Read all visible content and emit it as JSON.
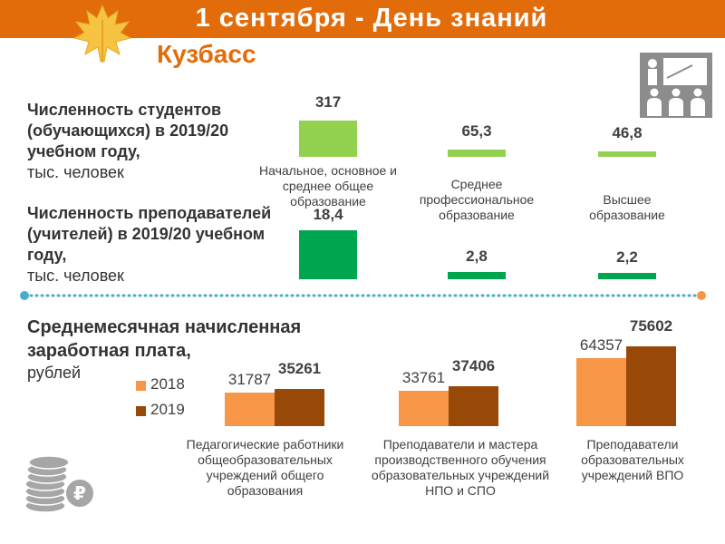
{
  "header": {
    "title": "1 сентября - День знаний",
    "bg_color": "#E36C0A"
  },
  "region": {
    "name": "Кузбасс",
    "color": "#E36C0A"
  },
  "students_block": {
    "title": "Численность студентов (обучающихся) в 2019/20 учебном году,",
    "unit": "тыс. человек"
  },
  "teachers_block": {
    "title": "Численность преподавателей (учителей) в 2019/20 учебном году,",
    "unit": "тыс. человек"
  },
  "salary_block": {
    "title": "Среднемесячная начисленная заработная плата,",
    "unit": "рублей"
  },
  "icons": {
    "teacher": "teacher-presentation-icon",
    "coins": "coins-ruble-icon",
    "leaf": "maple-leaf-icon"
  },
  "chart_data": [
    {
      "type": "bar",
      "categories": [
        "Начальное, основное и среднее общее образование",
        "Среднее профессиональное образование",
        "Высшее образование"
      ],
      "series": [
        {
          "values": [
            317,
            65.3,
            46.8
          ]
        }
      ],
      "value_labels": [
        "317",
        "65,3",
        "46,8"
      ],
      "color": "#92D050",
      "ylabel": "тыс. человек"
    },
    {
      "type": "bar",
      "categories": [
        "Начальное, основное и среднее общее образование",
        "Среднее профессиональное образование",
        "Высшее образование"
      ],
      "series": [
        {
          "values": [
            18.4,
            2.8,
            2.2
          ]
        }
      ],
      "value_labels": [
        "18,4",
        "2,8",
        "2,2"
      ],
      "color": "#00A550",
      "ylabel": "тыс. человек"
    },
    {
      "type": "bar",
      "categories": [
        "Педагогические работники общеобразовательных учреждений общего образования",
        "Преподаватели и мастера производственного обучения образовательных учреждений НПО и СПО",
        "Преподаватели образовательных учреждений ВПО"
      ],
      "series": [
        {
          "name": "2018",
          "values": [
            31787,
            33761,
            64357
          ],
          "color": "#F79646"
        },
        {
          "name": "2019",
          "values": [
            35261,
            37406,
            75602
          ],
          "color": "#984807"
        }
      ],
      "ylabel": "рублей",
      "legend": "left"
    }
  ]
}
